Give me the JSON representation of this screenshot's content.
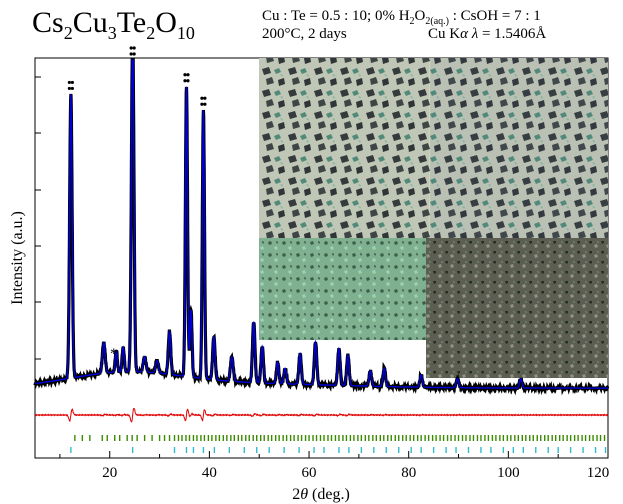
{
  "title": {
    "main": "Cs",
    "s1": "2",
    "m2": "Cu",
    "s2": "3",
    "m3": "Te",
    "s3": "2",
    "m4": "O",
    "s4": "10"
  },
  "conditions": {
    "line1_a": "Cu : Te = 0.5 : 10; 0% H",
    "line1_sub1": "2",
    "line1_b": "O",
    "line1_sub2": "2(aq.)",
    "line1_c": " : CsOH = 7 : 1",
    "line2_a": "200°C, 2  days",
    "line2_b": "Cu K",
    "line2_alpha": "α",
    "line2_lambda": " λ",
    "line2_c": " = 1.5406Å"
  },
  "chart_data": {
    "type": "line",
    "xlabel_theta": "θ",
    "xlabel_pre": "2",
    "xlabel_post": " (deg.)",
    "ylabel": "Intensity (a.u.)",
    "xlim": [
      5,
      120
    ],
    "x_ticks": [
      20,
      40,
      60,
      80,
      100,
      120
    ],
    "annotation": "*",
    "annotation_x": 20.8,
    "peaks": [
      {
        "x": 12.2,
        "h": 0.93,
        "w": 0.35
      },
      {
        "x": 18.8,
        "h": 0.1,
        "w": 0.4
      },
      {
        "x": 21.3,
        "h": 0.07,
        "w": 0.3
      },
      {
        "x": 22.7,
        "h": 0.08,
        "w": 0.3
      },
      {
        "x": 24.6,
        "h": 1.12,
        "w": 0.35
      },
      {
        "x": 27.0,
        "h": 0.05,
        "w": 0.4
      },
      {
        "x": 29.5,
        "h": 0.04,
        "w": 0.4
      },
      {
        "x": 32.0,
        "h": 0.14,
        "w": 0.35
      },
      {
        "x": 35.4,
        "h": 0.95,
        "w": 0.3
      },
      {
        "x": 36.3,
        "h": 0.22,
        "w": 0.3
      },
      {
        "x": 38.8,
        "h": 0.88,
        "w": 0.3
      },
      {
        "x": 40.9,
        "h": 0.14,
        "w": 0.35
      },
      {
        "x": 44.5,
        "h": 0.08,
        "w": 0.4
      },
      {
        "x": 48.9,
        "h": 0.2,
        "w": 0.35
      },
      {
        "x": 50.6,
        "h": 0.12,
        "w": 0.35
      },
      {
        "x": 53.7,
        "h": 0.07,
        "w": 0.35
      },
      {
        "x": 55.2,
        "h": 0.05,
        "w": 0.35
      },
      {
        "x": 58.2,
        "h": 0.1,
        "w": 0.35
      },
      {
        "x": 61.3,
        "h": 0.14,
        "w": 0.35
      },
      {
        "x": 66.0,
        "h": 0.12,
        "w": 0.35
      },
      {
        "x": 67.8,
        "h": 0.1,
        "w": 0.35
      },
      {
        "x": 72.3,
        "h": 0.05,
        "w": 0.35
      },
      {
        "x": 75.1,
        "h": 0.06,
        "w": 0.35
      },
      {
        "x": 82.5,
        "h": 0.04,
        "w": 0.35
      },
      {
        "x": 89.8,
        "h": 0.03,
        "w": 0.35
      },
      {
        "x": 102.5,
        "h": 0.03,
        "w": 0.35
      }
    ],
    "green_ticks": [
      13,
      14.5,
      16,
      18.5,
      19.5,
      21,
      22,
      23.5,
      24.5,
      25.5,
      27,
      28.5,
      30,
      31,
      32,
      33,
      33.8,
      34.5,
      35.3,
      36,
      36.8,
      37.5,
      38.3,
      39,
      39.8,
      40.5,
      41.3,
      42,
      42.8,
      43.5,
      44.3,
      45,
      45.8,
      46.5,
      47.3,
      48,
      48.8,
      49.5,
      50.3,
      51,
      51.8,
      52.5,
      53.3,
      54,
      54.8,
      55.5,
      56.3,
      57,
      57.8,
      58.5,
      59.3,
      60,
      60.8,
      61.5,
      62.3,
      63,
      63.8,
      64.5,
      65.3,
      66,
      66.8,
      67.5,
      68.3,
      69,
      69.8,
      70.5,
      71.3,
      72,
      72.8,
      73.5,
      74.3,
      75,
      75.8,
      76.5,
      77.3,
      78,
      78.8,
      79.5,
      80.3,
      81,
      81.8,
      82.5,
      83.3,
      84,
      84.8,
      85.5,
      86.3,
      87,
      87.8,
      88.5,
      89.3,
      90,
      90.8,
      91.5,
      92.3,
      93,
      93.8,
      94.5,
      95.3,
      96,
      96.8,
      97.5,
      98.3,
      99,
      99.8,
      100.5,
      101.3,
      102,
      102.8,
      103.5,
      104.3,
      105,
      105.8,
      106.5,
      107.3,
      108,
      108.8,
      109.5,
      110.3,
      111,
      111.8,
      112.5,
      113.3,
      114,
      114.8,
      115.5,
      116.3,
      117,
      117.8,
      118.5,
      119.3
    ],
    "cyan_ticks": [
      12.2,
      24.6,
      33,
      35.4,
      36.8,
      38.8,
      41,
      44,
      47,
      49.5,
      52,
      55,
      58,
      61,
      63,
      66,
      68,
      70.5,
      73,
      75.5,
      78,
      80.5,
      82.5,
      85,
      87.5,
      89.5,
      92,
      94.5,
      96.5,
      99,
      101,
      103,
      105.5,
      108,
      110,
      112.5,
      115,
      117.5,
      119.5
    ]
  },
  "inset": {
    "photo_tl": "#cdd2b8",
    "photo_tr": "#cdd2b8",
    "photo_bl": "#7fae8e",
    "photo_br": "#5c5e52"
  },
  "colors": {
    "obs": "#000000",
    "calc": "#0000dd",
    "diff": "#e00000",
    "tick1": "#3a8a00",
    "tick2": "#33bbcc"
  }
}
